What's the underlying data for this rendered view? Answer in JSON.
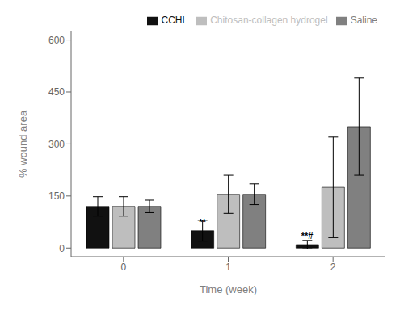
{
  "chart_data": {
    "type": "bar",
    "xlabel": "Time (week)",
    "ylabel": "% wound area",
    "categories": [
      "0",
      "1",
      "2"
    ],
    "series": [
      {
        "name": "CCHL",
        "color": "#111111",
        "values": [
          120,
          50,
          10
        ],
        "errors_up": [
          28,
          30,
          12
        ],
        "errors_down": [
          28,
          30,
          12
        ]
      },
      {
        "name": "Chitosan-collagen hydrogel",
        "color": "#bebebe",
        "values": [
          120,
          155,
          175
        ],
        "errors_up": [
          28,
          55,
          145
        ],
        "errors_down": [
          28,
          55,
          145
        ]
      },
      {
        "name": "Saline",
        "color": "#808080",
        "values": [
          120,
          155,
          350
        ],
        "errors_up": [
          18,
          30,
          140
        ],
        "errors_down": [
          18,
          30,
          140
        ]
      }
    ],
    "ylim": [
      -25,
      625
    ],
    "yticks": [
      0,
      150,
      300,
      450,
      600
    ],
    "grid": false,
    "legend": "upper right",
    "annotations": [
      {
        "text": "**",
        "x": "1",
        "series": "CCHL",
        "y": 62
      },
      {
        "text": "**#",
        "x": "2",
        "series": "CCHL",
        "y": 22
      }
    ]
  }
}
